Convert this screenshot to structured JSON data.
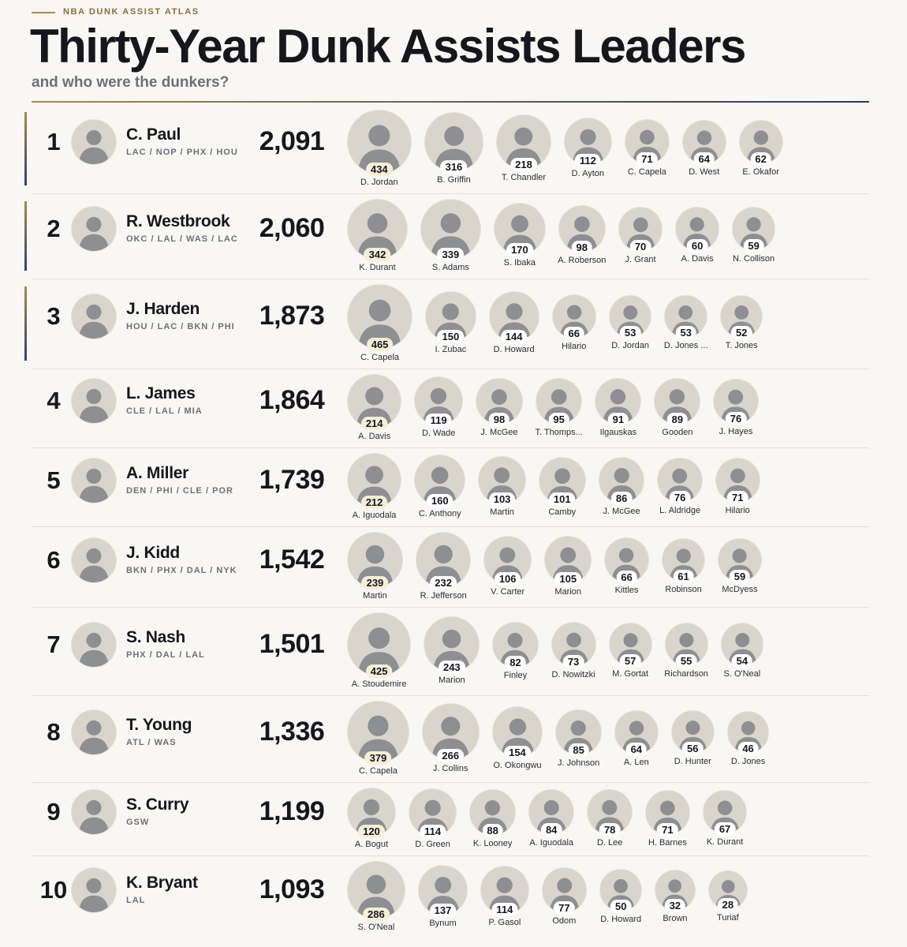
{
  "header": {
    "kicker": "NBA DUNK ASSIST ATLAS",
    "title": "Thirty-Year Dunk Assists Leaders",
    "subtitle": "and who were the dunkers?"
  },
  "leaders": [
    {
      "rank": 1,
      "name": "C. Paul",
      "teams": "LAC / NOP / PHX / HOU",
      "total": "2,091",
      "dunkers": [
        {
          "name": "D. Jordan",
          "count": 434
        },
        {
          "name": "B. Griffin",
          "count": 316
        },
        {
          "name": "T. Chandler",
          "count": 218
        },
        {
          "name": "D. Ayton",
          "count": 112
        },
        {
          "name": "C. Capela",
          "count": 71
        },
        {
          "name": "D. West",
          "count": 64
        },
        {
          "name": "E. Okafor",
          "count": 62
        }
      ]
    },
    {
      "rank": 2,
      "name": "R. Westbrook",
      "teams": "OKC / LAL / WAS / LAC",
      "total": "2,060",
      "dunkers": [
        {
          "name": "K. Durant",
          "count": 342
        },
        {
          "name": "S. Adams",
          "count": 339
        },
        {
          "name": "S. Ibaka",
          "count": 170
        },
        {
          "name": "A. Roberson",
          "count": 98
        },
        {
          "name": "J. Grant",
          "count": 70
        },
        {
          "name": "A. Davis",
          "count": 60
        },
        {
          "name": "N. Collison",
          "count": 59
        }
      ]
    },
    {
      "rank": 3,
      "name": "J. Harden",
      "teams": "HOU / LAC / BKN / PHI",
      "total": "1,873",
      "dunkers": [
        {
          "name": "C. Capela",
          "count": 465
        },
        {
          "name": "I. Zubac",
          "count": 150
        },
        {
          "name": "D. Howard",
          "count": 144
        },
        {
          "name": "Hilario",
          "count": 66
        },
        {
          "name": "D. Jordan",
          "count": 53
        },
        {
          "name": "D. Jones ...",
          "count": 53
        },
        {
          "name": "T. Jones",
          "count": 52
        }
      ]
    },
    {
      "rank": 4,
      "name": "L. James",
      "teams": "CLE / LAL / MIA",
      "total": "1,864",
      "dunkers": [
        {
          "name": "A. Davis",
          "count": 214
        },
        {
          "name": "D. Wade",
          "count": 119
        },
        {
          "name": "J. McGee",
          "count": 98
        },
        {
          "name": "T. Thomps...",
          "count": 95
        },
        {
          "name": "Ilgauskas",
          "count": 91
        },
        {
          "name": "Gooden",
          "count": 89
        },
        {
          "name": "J. Hayes",
          "count": 76
        }
      ]
    },
    {
      "rank": 5,
      "name": "A. Miller",
      "teams": "DEN / PHI / CLE / POR",
      "total": "1,739",
      "dunkers": [
        {
          "name": "A. Iguodala",
          "count": 212
        },
        {
          "name": "C. Anthony",
          "count": 160
        },
        {
          "name": "Martin",
          "count": 103
        },
        {
          "name": "Camby",
          "count": 101
        },
        {
          "name": "J. McGee",
          "count": 86
        },
        {
          "name": "L. Aldridge",
          "count": 76
        },
        {
          "name": "Hilario",
          "count": 71
        }
      ]
    },
    {
      "rank": 6,
      "name": "J. Kidd",
      "teams": "BKN / PHX / DAL / NYK",
      "total": "1,542",
      "dunkers": [
        {
          "name": "Martin",
          "count": 239
        },
        {
          "name": "R. Jefferson",
          "count": 232
        },
        {
          "name": "V. Carter",
          "count": 106
        },
        {
          "name": "Marion",
          "count": 105
        },
        {
          "name": "Kittles",
          "count": 66
        },
        {
          "name": "Robinson",
          "count": 61
        },
        {
          "name": "McDyess",
          "count": 59
        }
      ]
    },
    {
      "rank": 7,
      "name": "S. Nash",
      "teams": "PHX / DAL / LAL",
      "total": "1,501",
      "dunkers": [
        {
          "name": "A. Stoudemire",
          "count": 425
        },
        {
          "name": "Marion",
          "count": 243
        },
        {
          "name": "Finley",
          "count": 82
        },
        {
          "name": "D. Nowitzki",
          "count": 73
        },
        {
          "name": "M. Gortat",
          "count": 57
        },
        {
          "name": "Richardson",
          "count": 55
        },
        {
          "name": "S. O'Neal",
          "count": 54
        }
      ]
    },
    {
      "rank": 8,
      "name": "T. Young",
      "teams": "ATL / WAS",
      "total": "1,336",
      "dunkers": [
        {
          "name": "C. Capela",
          "count": 379
        },
        {
          "name": "J. Collins",
          "count": 266
        },
        {
          "name": "O. Okongwu",
          "count": 154
        },
        {
          "name": "J. Johnson",
          "count": 85
        },
        {
          "name": "A. Len",
          "count": 64
        },
        {
          "name": "D. Hunter",
          "count": 56
        },
        {
          "name": "D. Jones",
          "count": 46
        }
      ]
    },
    {
      "rank": 9,
      "name": "S. Curry",
      "teams": "GSW",
      "total": "1,199",
      "dunkers": [
        {
          "name": "A. Bogut",
          "count": 120
        },
        {
          "name": "D. Green",
          "count": 114
        },
        {
          "name": "K. Looney",
          "count": 88
        },
        {
          "name": "A. Iguodala",
          "count": 84
        },
        {
          "name": "D. Lee",
          "count": 78
        },
        {
          "name": "H. Barnes",
          "count": 71
        },
        {
          "name": "K. Durant",
          "count": 67
        }
      ]
    },
    {
      "rank": 10,
      "name": "K. Bryant",
      "teams": "LAL",
      "total": "1,093",
      "dunkers": [
        {
          "name": "S. O'Neal",
          "count": 286
        },
        {
          "name": "Bynum",
          "count": 137
        },
        {
          "name": "P. Gasol",
          "count": 114
        },
        {
          "name": "Odom",
          "count": 77
        },
        {
          "name": "D. Howard",
          "count": 50
        },
        {
          "name": "Brown",
          "count": 32
        },
        {
          "name": "Turiaf",
          "count": 28
        }
      ]
    }
  ]
}
